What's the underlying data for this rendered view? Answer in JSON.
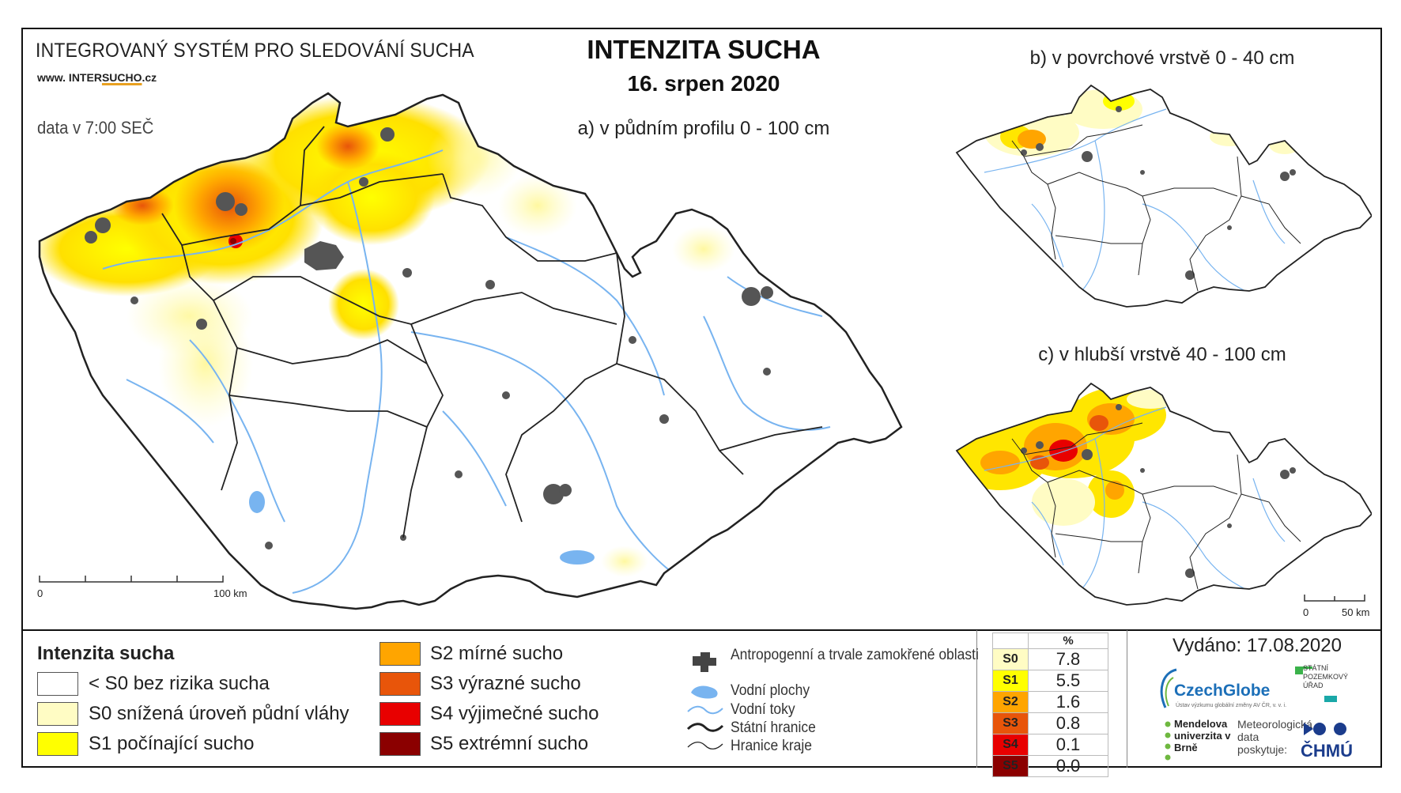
{
  "header": {
    "system_title": "INTEGROVANÝ SYSTÉM PRO SLEDOVÁNÍ SUCHA",
    "website_prefix": "www. INTER",
    "website_highlight": "SUCHO",
    "website_suffix": ".cz",
    "data_time": "data v 7:00 SEČ",
    "main_title": "INTENZITA SUCHA",
    "date": "16. srpen 2020"
  },
  "maps": {
    "a_title": "a) v půdním profilu 0 - 100 cm",
    "b_title": "b) v povrchové vrstvě 0 - 40 cm",
    "c_title": "c) v hlubší vrstvě 40 - 100 cm",
    "scale_main_start": "0",
    "scale_main_end": "100 km",
    "scale_small_start": "0",
    "scale_small_end": "50 km"
  },
  "legend": {
    "title": "Intenzita sucha",
    "classes": [
      {
        "label": "< S0 bez rizika sucha",
        "color": "#ffffff"
      },
      {
        "label": "S0 snížená úroveň půdní vláhy",
        "color": "#fffcc4"
      },
      {
        "label": "S1 počínající sucho",
        "color": "#ffff00"
      },
      {
        "label": "S2 mírné sucho",
        "color": "#ffa500"
      },
      {
        "label": "S3 výrazné sucho",
        "color": "#e8550a"
      },
      {
        "label": "S4 výjimečné sucho",
        "color": "#e80000"
      },
      {
        "label": "S5 extrémní sucho",
        "color": "#8b0000"
      }
    ],
    "symbols": {
      "anthropogenic": "Antropogenní a trvale zamokřené oblasti",
      "water_bodies": "Vodní plochy",
      "rivers": "Vodní toky",
      "state_border": "Státní hranice",
      "region_border": "Hranice kraje"
    },
    "symbol_colors": {
      "anthropogenic": "#444444",
      "water": "#78b4f0",
      "border": "#222222"
    }
  },
  "percent_table": {
    "header": "%",
    "rows": [
      {
        "code": "S0",
        "value": "7.8",
        "color": "#fffcc4"
      },
      {
        "code": "S1",
        "value": "5.5",
        "color": "#ffff00"
      },
      {
        "code": "S2",
        "value": "1.6",
        "color": "#ffa500"
      },
      {
        "code": "S3",
        "value": "0.8",
        "color": "#e8550a"
      },
      {
        "code": "S4",
        "value": "0.1",
        "color": "#e80000"
      },
      {
        "code": "S5",
        "value": "0.0",
        "color": "#8b0000"
      }
    ]
  },
  "footer": {
    "issued": "Vydáno: 17.08.2020",
    "logo_czechglobe": "CzechGlobe",
    "logo_czechglobe_sub": "Ústav výzkumu globální změny AV ČR, v. v. i.",
    "logo_spu": "STÁTNÍ POZEMKOVÝ ÚŘAD",
    "logo_mendel": "Mendelova univerzita v Brně",
    "logo_met": "Meteorologická data poskytuje:",
    "logo_chmu": "ČHMÚ"
  }
}
